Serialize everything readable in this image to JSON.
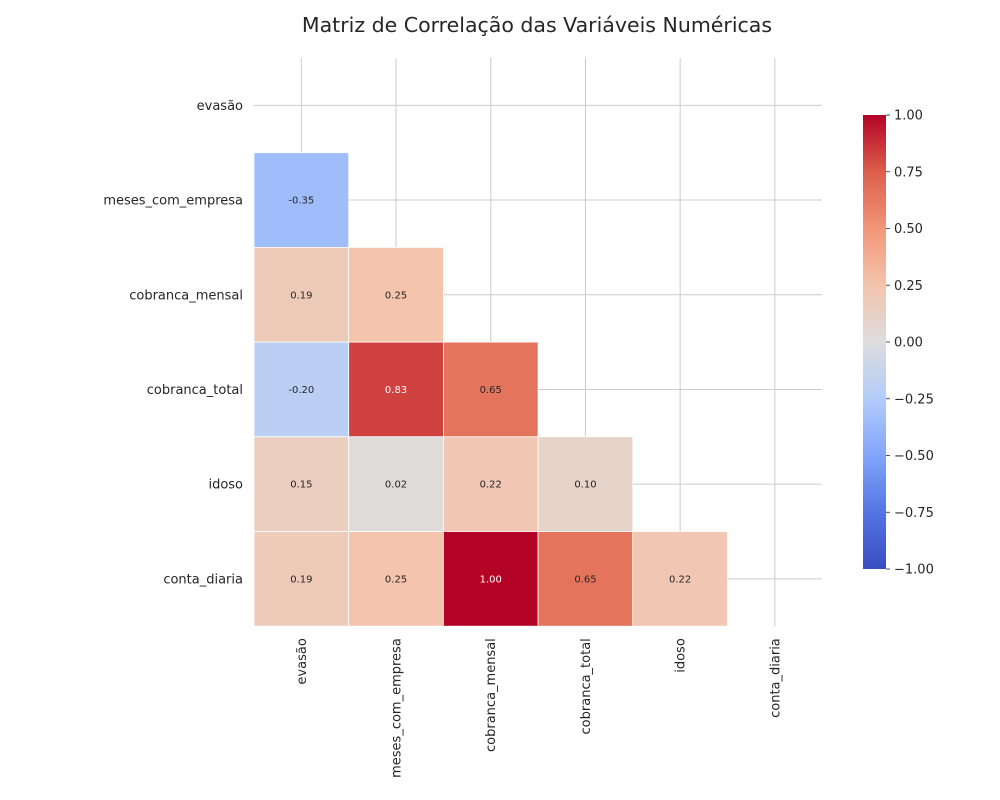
{
  "chart_data": {
    "type": "heatmap",
    "title": "Matriz de Correlação das Variáveis Numéricas",
    "xlabel": "",
    "ylabel": "",
    "rows": [
      "evasão",
      "meses_com_empresa",
      "cobranca_mensal",
      "cobranca_total",
      "idoso",
      "conta_diaria"
    ],
    "columns": [
      "evasão",
      "meses_com_empresa",
      "cobranca_mensal",
      "cobranca_total",
      "idoso",
      "conta_diaria"
    ],
    "values": [
      [
        null,
        null,
        null,
        null,
        null,
        null
      ],
      [
        -0.35,
        null,
        null,
        null,
        null,
        null
      ],
      [
        0.19,
        0.25,
        null,
        null,
        null,
        null
      ],
      [
        -0.2,
        0.83,
        0.65,
        null,
        null,
        null
      ],
      [
        0.15,
        0.02,
        0.22,
        0.1,
        null,
        null
      ],
      [
        0.19,
        0.25,
        1.0,
        0.65,
        0.22,
        null
      ]
    ],
    "value_labels": [
      [
        null,
        null,
        null,
        null,
        null,
        null
      ],
      [
        "-0.35",
        null,
        null,
        null,
        null,
        null
      ],
      [
        "0.19",
        "0.25",
        null,
        null,
        null,
        null
      ],
      [
        "-0.20",
        "0.83",
        "0.65",
        null,
        null,
        null
      ],
      [
        "0.15",
        "0.02",
        "0.22",
        "0.10",
        null,
        null
      ],
      [
        "0.19",
        "0.25",
        "1.00",
        "0.65",
        "0.22",
        null
      ]
    ],
    "mask": "upper triangle including diagonal",
    "colormap": "coolwarm",
    "vmin": -1.0,
    "vmax": 1.0,
    "grid": true,
    "colorbar": {
      "position": "right",
      "ticks": [
        1.0,
        0.75,
        0.5,
        0.25,
        0.0,
        -0.25,
        -0.5,
        -0.75,
        -1.0
      ],
      "tick_labels": [
        "1.00",
        "0.75",
        "0.50",
        "0.25",
        "0.00",
        "−0.25",
        "−0.50",
        "−0.75",
        "−1.00"
      ]
    },
    "colors": {
      "grid": "#cccccc",
      "text": "#262626",
      "cell_border": "#ffffff"
    }
  }
}
